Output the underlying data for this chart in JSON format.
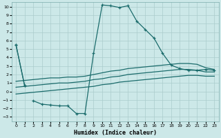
{
  "xlabel": "Humidex (Indice chaleur)",
  "xlim": [
    -0.5,
    23.5
  ],
  "ylim": [
    -3.5,
    10.5
  ],
  "background_color": "#cce8e8",
  "grid_color": "#aacccc",
  "line_color": "#1a6b6b",
  "series_main": {
    "x": [
      0,
      1,
      2,
      3,
      4,
      5,
      6,
      7,
      8,
      9,
      10,
      11,
      12,
      13,
      14,
      15,
      16,
      17,
      18,
      19,
      20,
      21,
      22,
      23
    ],
    "y": [
      5.5,
      0.7,
      null,
      null,
      null,
      null,
      null,
      null,
      null,
      null,
      null,
      null,
      null,
      null,
      null,
      null,
      null,
      null,
      null,
      null,
      null,
      null,
      null,
      null
    ],
    "segments": [
      {
        "x": [
          0,
          1
        ],
        "y": [
          5.5,
          0.7
        ]
      },
      {
        "x": [
          2,
          3,
          4,
          5,
          6,
          7,
          8,
          9,
          10,
          11,
          12,
          13,
          14,
          15,
          16,
          17,
          18,
          19,
          20,
          21,
          22,
          23
        ],
        "y": [
          -1.1,
          -1.5,
          -1.6,
          -1.7,
          -1.7,
          -2.6,
          -2.6,
          4.5,
          10.2,
          10.1,
          9.9,
          10.1,
          8.3,
          7.3,
          6.3,
          4.5,
          3.1,
          2.7,
          2.5,
          2.5,
          2.6,
          2.5
        ]
      }
    ]
  },
  "series_linear": [
    {
      "x": [
        0,
        1,
        2,
        3,
        4,
        5,
        6,
        7,
        8,
        9,
        10,
        11,
        12,
        13,
        14,
        15,
        16,
        17,
        18,
        19,
        20,
        21,
        22,
        23
      ],
      "y": [
        1.2,
        1.3,
        1.4,
        1.5,
        1.6,
        1.6,
        1.7,
        1.7,
        1.8,
        2.0,
        2.2,
        2.4,
        2.5,
        2.7,
        2.8,
        2.9,
        3.0,
        3.1,
        3.2,
        3.3,
        3.3,
        3.2,
        2.8,
        2.6
      ]
    },
    {
      "x": [
        0,
        1,
        2,
        3,
        4,
        5,
        6,
        7,
        8,
        9,
        10,
        11,
        12,
        13,
        14,
        15,
        16,
        17,
        18,
        19,
        20,
        21,
        22,
        23
      ],
      "y": [
        0.5,
        0.6,
        0.7,
        0.8,
        0.9,
        1.0,
        1.0,
        1.1,
        1.2,
        1.4,
        1.5,
        1.7,
        1.8,
        2.0,
        2.1,
        2.2,
        2.3,
        2.4,
        2.5,
        2.6,
        2.6,
        2.5,
        2.3,
        2.3
      ]
    },
    {
      "x": [
        0,
        1,
        2,
        3,
        4,
        5,
        6,
        7,
        8,
        9,
        10,
        11,
        12,
        13,
        14,
        15,
        16,
        17,
        18,
        19,
        20,
        21,
        22,
        23
      ],
      "y": [
        -0.3,
        -0.2,
        -0.1,
        0.0,
        0.1,
        0.2,
        0.3,
        0.4,
        0.5,
        0.6,
        0.8,
        0.9,
        1.1,
        1.2,
        1.3,
        1.4,
        1.5,
        1.6,
        1.7,
        1.8,
        1.9,
        1.9,
        1.8,
        1.8
      ]
    }
  ],
  "yticks": [
    -3,
    -2,
    -1,
    0,
    1,
    2,
    3,
    4,
    5,
    6,
    7,
    8,
    9,
    10
  ],
  "xticks": [
    0,
    1,
    2,
    3,
    4,
    5,
    6,
    7,
    8,
    9,
    10,
    11,
    12,
    13,
    14,
    15,
    16,
    17,
    18,
    19,
    20,
    21,
    22,
    23
  ]
}
